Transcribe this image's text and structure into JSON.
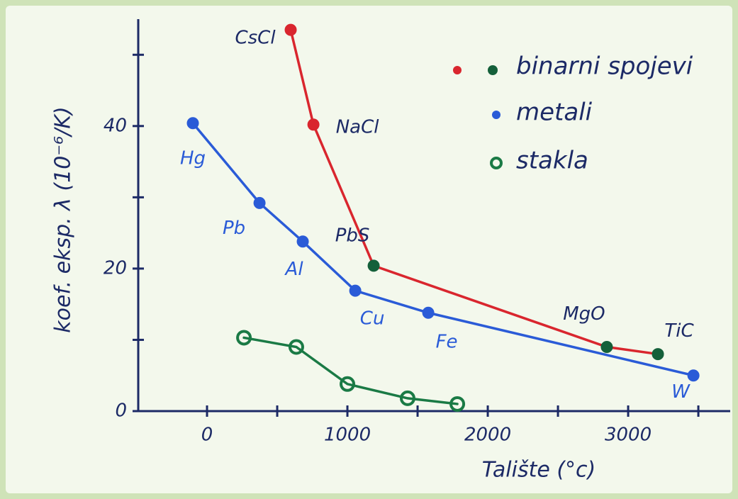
{
  "chart_data": {
    "type": "scatter",
    "x_label": "Talište (°c)",
    "y_label": "koef. eksp. λ (10⁻⁶/K)",
    "xlim": [
      -490,
      3727
    ],
    "ylim": [
      0,
      55
    ],
    "xticks": [
      0,
      1000,
      2000,
      3000
    ],
    "xminor_ticks": [
      500,
      1500,
      2500,
      3500
    ],
    "yticks": [
      0,
      20,
      40
    ],
    "yminor_ticks": [
      10,
      30,
      50
    ],
    "series": [
      {
        "name": "binarni spojevi",
        "color": "#d9262e",
        "marker": "dot",
        "point_colors": [
          "#d9262e",
          "#d9262e",
          "#14603a",
          "#14603a",
          "#14603a"
        ],
        "x": [
          596,
          758,
          1187,
          2848,
          3212
        ],
        "values": [
          53.5,
          40.2,
          20.4,
          9.0,
          8.0
        ],
        "labels": [
          "CsCl",
          "NaCl",
          "PbS",
          "MgO",
          "TiC"
        ]
      },
      {
        "name": "metali",
        "color": "#2a5bd7",
        "marker": "dot",
        "x": [
          -101,
          374,
          682,
          1056,
          1576,
          3465
        ],
        "values": [
          40.4,
          29.2,
          23.8,
          16.9,
          13.8,
          5.0
        ],
        "labels": [
          "Hg",
          "Pb",
          "Al",
          "Cu",
          "Fe",
          "W"
        ]
      },
      {
        "name": "stakla",
        "color": "#1a7a45",
        "marker": "ring",
        "x": [
          263,
          636,
          1000,
          1429,
          1783
        ],
        "values": [
          10.3,
          9.0,
          3.8,
          1.8,
          1.0
        ]
      }
    ]
  }
}
